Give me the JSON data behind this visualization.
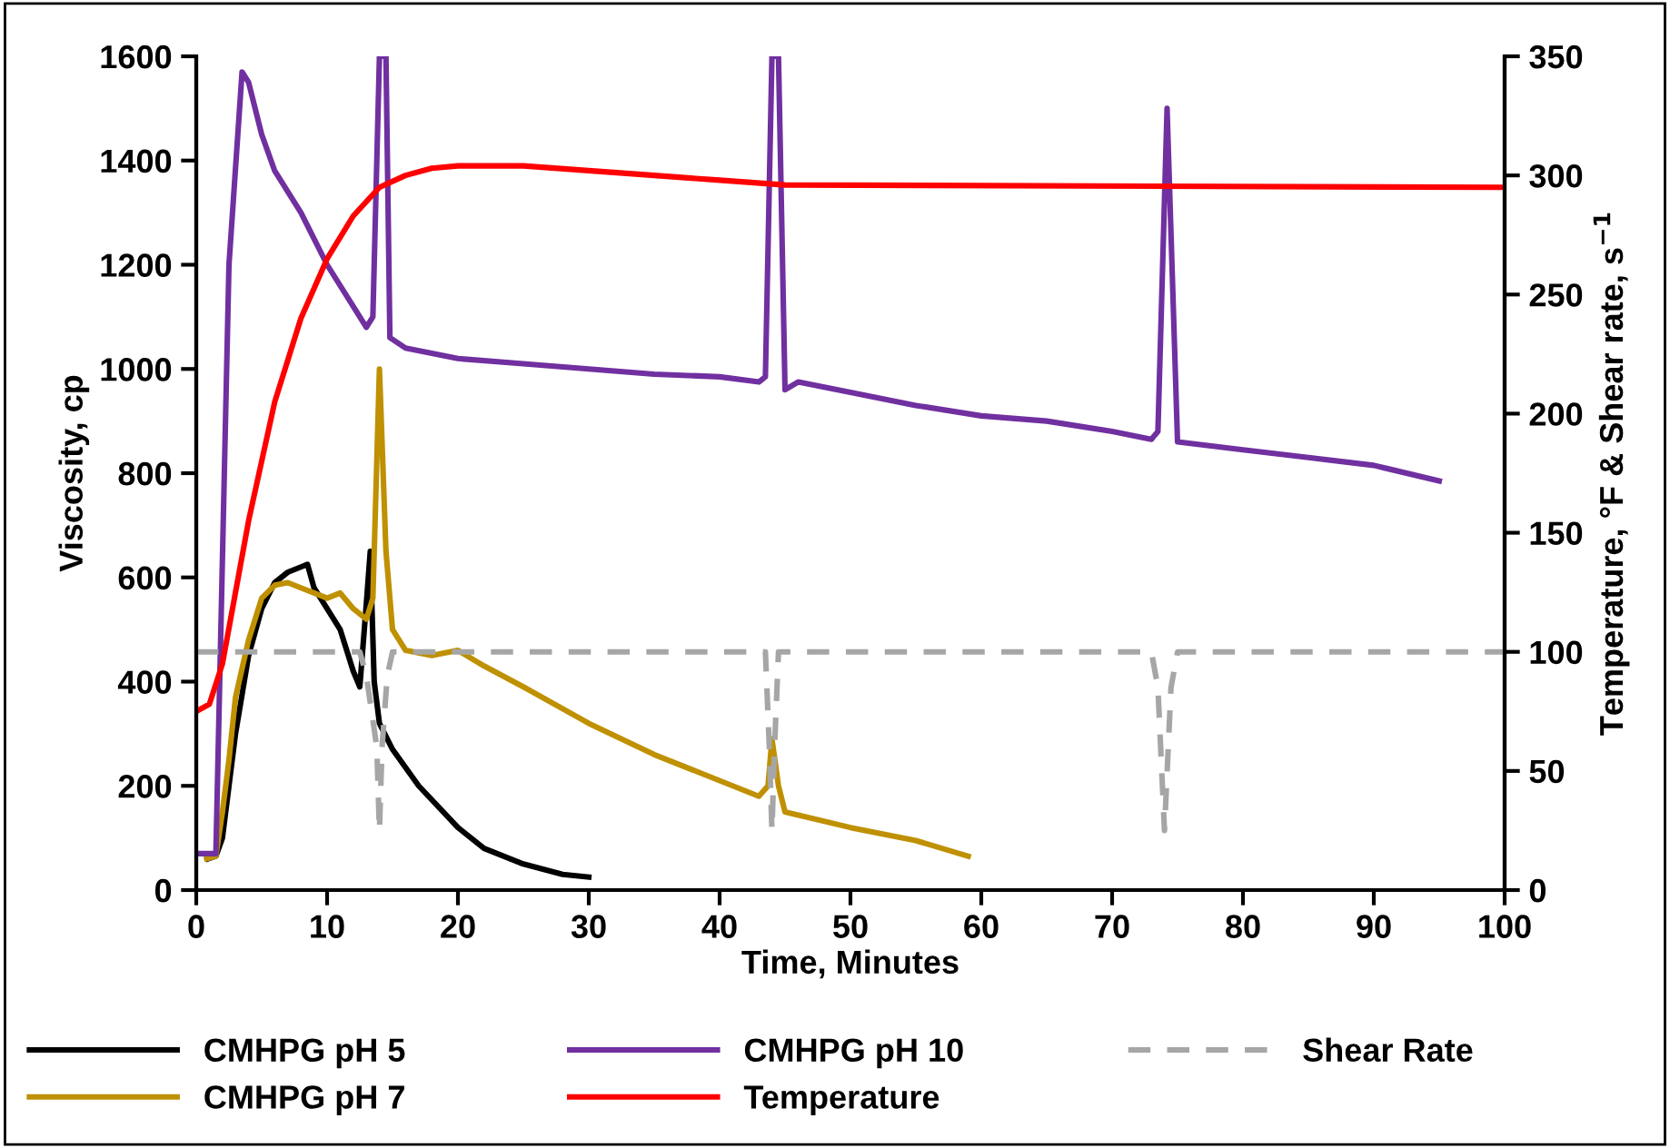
{
  "chart_data": {
    "type": "line",
    "xlabel": "Time, Minutes",
    "ylabel": "Viscosity, cp",
    "y2label": "Temperature, °F & Shear rate, s$^{−1}$",
    "xlim": [
      0,
      100
    ],
    "xticks": [
      0,
      10,
      20,
      30,
      40,
      50,
      60,
      70,
      80,
      90,
      100
    ],
    "ylim": [
      0,
      1600
    ],
    "yticks": [
      0,
      200,
      400,
      600,
      800,
      1000,
      1200,
      1400,
      1600
    ],
    "y2lim": [
      0,
      350
    ],
    "y2ticks": [
      0,
      50,
      100,
      150,
      200,
      250,
      300,
      350
    ],
    "grid": false,
    "legend": "bottom",
    "marker": "none",
    "series": [
      {
        "name": "CMHPG pH 5",
        "color": "#000000",
        "line_style": "solid",
        "x": [
          0.9,
          1.5,
          2,
          3,
          4,
          5,
          6,
          7,
          8,
          8.5,
          9,
          10,
          11,
          12,
          12.5,
          13,
          13.3,
          13.6,
          14,
          15,
          17,
          20,
          22,
          25,
          28,
          30
        ],
        "values": [
          60,
          65,
          100,
          300,
          450,
          540,
          590,
          610,
          620,
          625,
          580,
          540,
          500,
          420,
          390,
          550,
          650,
          400,
          320,
          270,
          200,
          120,
          80,
          50,
          30,
          25
        ]
      },
      {
        "name": "CMHPG pH 7",
        "color": "#bf9000",
        "line_style": "solid",
        "x": [
          0.8,
          1.5,
          2,
          2.5,
          3,
          4,
          5,
          6,
          7,
          8,
          9,
          10,
          11,
          12,
          13,
          13.5,
          14,
          14.5,
          15,
          16,
          18,
          20,
          22,
          25,
          30,
          35,
          40,
          43,
          43.7,
          44,
          44.5,
          45,
          50,
          55,
          59
        ],
        "values": [
          60,
          65,
          150,
          250,
          370,
          480,
          560,
          585,
          590,
          580,
          570,
          560,
          570,
          540,
          520,
          560,
          1000,
          650,
          500,
          460,
          450,
          460,
          430,
          390,
          320,
          260,
          210,
          180,
          200,
          290,
          200,
          150,
          120,
          95,
          65
        ]
      },
      {
        "name": "CMHPG pH 10",
        "color": "#7030a0",
        "line_style": "solid",
        "x": [
          0,
          1,
          1.5,
          2.5,
          3.5,
          4,
          5,
          6,
          8,
          10,
          12,
          13,
          13.5,
          14,
          14.5,
          14.8,
          16,
          20,
          25,
          30,
          35,
          40,
          43,
          43.5,
          44,
          44.5,
          45,
          46,
          50,
          55,
          60,
          65,
          70,
          73,
          73.5,
          74.2,
          75,
          80,
          85,
          90,
          95
        ],
        "values": [
          70,
          70,
          70,
          1200,
          1570,
          1550,
          1450,
          1380,
          1300,
          1200,
          1120,
          1080,
          1100,
          1600,
          1600,
          1060,
          1040,
          1020,
          1010,
          1000,
          990,
          985,
          975,
          985,
          1600,
          1600,
          960,
          975,
          955,
          930,
          910,
          900,
          880,
          865,
          880,
          1500,
          860,
          845,
          830,
          815,
          785
        ]
      },
      {
        "name": "Temperature",
        "color": "#ff0000",
        "axis": "y2",
        "line_style": "solid",
        "x": [
          0,
          1,
          2,
          3,
          4,
          5,
          6,
          8,
          10,
          12,
          14,
          16,
          18,
          20,
          25,
          30,
          35,
          40,
          45,
          100
        ],
        "values": [
          75,
          78,
          95,
          125,
          155,
          180,
          205,
          240,
          265,
          283,
          295,
          300,
          303,
          304,
          304,
          302,
          300,
          298,
          296,
          295
        ]
      },
      {
        "name": "Shear Rate",
        "color": "#a6a6a6",
        "axis": "y2",
        "line_style": "dashed",
        "x": [
          0,
          12.5,
          13,
          13.8,
          14,
          14.2,
          14.6,
          15,
          43.5,
          43.8,
          44,
          44.2,
          44.5,
          73,
          73.5,
          74,
          74.5,
          75,
          100
        ],
        "values": [
          100,
          100,
          90,
          60,
          25,
          60,
          90,
          100,
          100,
          60,
          25,
          60,
          100,
          100,
          85,
          25,
          85,
          100,
          100
        ]
      }
    ]
  }
}
